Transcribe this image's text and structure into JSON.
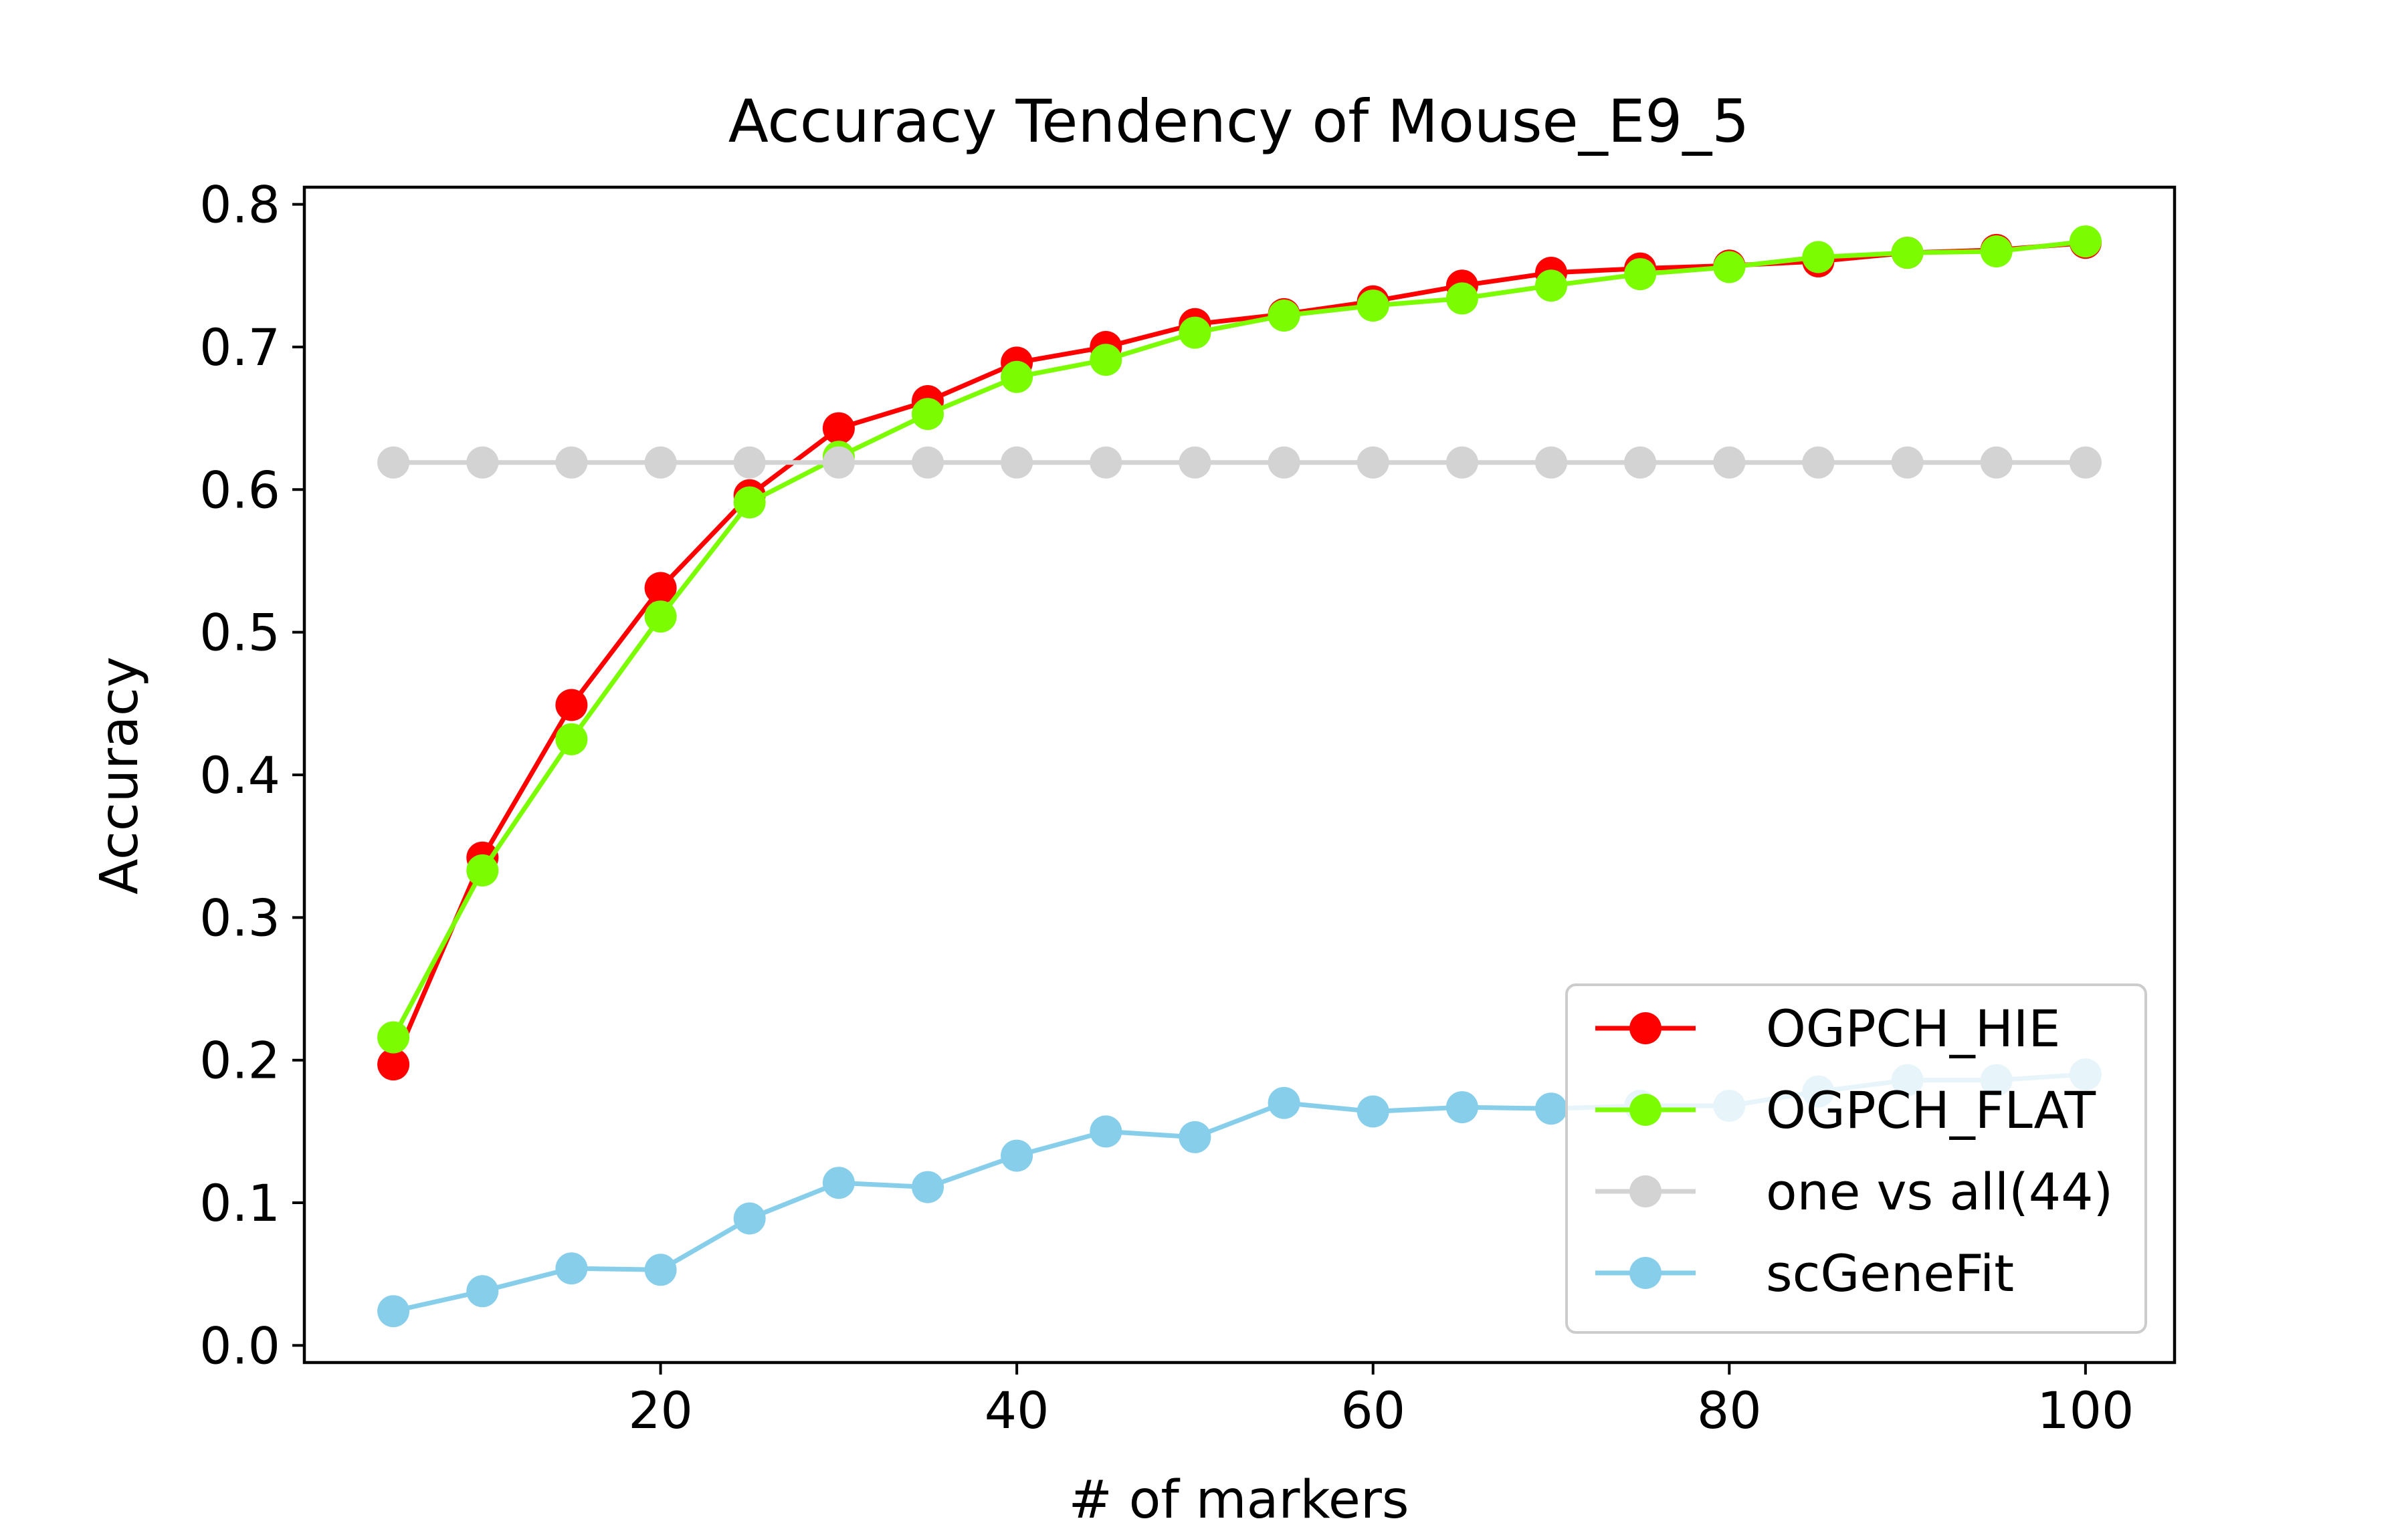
{
  "chart_data": {
    "type": "line",
    "title": "Accuracy Tendency of Mouse_E9_5",
    "xlabel": "# of markers",
    "ylabel": "Accuracy",
    "x": [
      5,
      10,
      15,
      20,
      25,
      30,
      35,
      40,
      45,
      50,
      55,
      60,
      65,
      70,
      75,
      80,
      85,
      90,
      95,
      100
    ],
    "xlim": [
      0,
      105
    ],
    "ylim": [
      -0.012,
      0.812
    ],
    "xticks": [
      20,
      40,
      60,
      80,
      100
    ],
    "xtick_labels": [
      "20",
      "40",
      "60",
      "80",
      "100"
    ],
    "yticks": [
      0.0,
      0.1,
      0.2,
      0.3,
      0.4,
      0.5,
      0.6,
      0.7,
      0.8
    ],
    "ytick_labels": [
      "0.0",
      "0.1",
      "0.2",
      "0.3",
      "0.4",
      "0.5",
      "0.6",
      "0.7",
      "0.8"
    ],
    "grid": false,
    "legend_position": "lower-right",
    "series": [
      {
        "name": "OGPCH_HIE",
        "color": "#ff0000",
        "values": [
          0.197,
          0.342,
          0.449,
          0.531,
          0.596,
          0.643,
          0.662,
          0.689,
          0.7,
          0.716,
          0.723,
          0.732,
          0.743,
          0.752,
          0.755,
          0.757,
          0.76,
          0.766,
          0.768,
          0.773
        ]
      },
      {
        "name": "OGPCH_FLAT",
        "color": "#7cfc00",
        "values": [
          0.216,
          0.333,
          0.425,
          0.511,
          0.591,
          0.623,
          0.653,
          0.679,
          0.691,
          0.71,
          0.722,
          0.729,
          0.734,
          0.743,
          0.751,
          0.756,
          0.763,
          0.766,
          0.767,
          0.774
        ]
      },
      {
        "name": "one vs all(44)",
        "color": "#d3d3d3",
        "values": [
          0.619,
          0.619,
          0.619,
          0.619,
          0.619,
          0.619,
          0.619,
          0.619,
          0.619,
          0.619,
          0.619,
          0.619,
          0.619,
          0.619,
          0.619,
          0.619,
          0.619,
          0.619,
          0.619,
          0.619
        ]
      },
      {
        "name": "scGeneFit",
        "color": "#87ceeb",
        "values": [
          0.024,
          0.038,
          0.054,
          0.053,
          0.089,
          0.114,
          0.111,
          0.133,
          0.15,
          0.146,
          0.17,
          0.164,
          0.167,
          0.166,
          0.168,
          0.168,
          0.178,
          0.186,
          0.186,
          0.19
        ]
      }
    ]
  }
}
